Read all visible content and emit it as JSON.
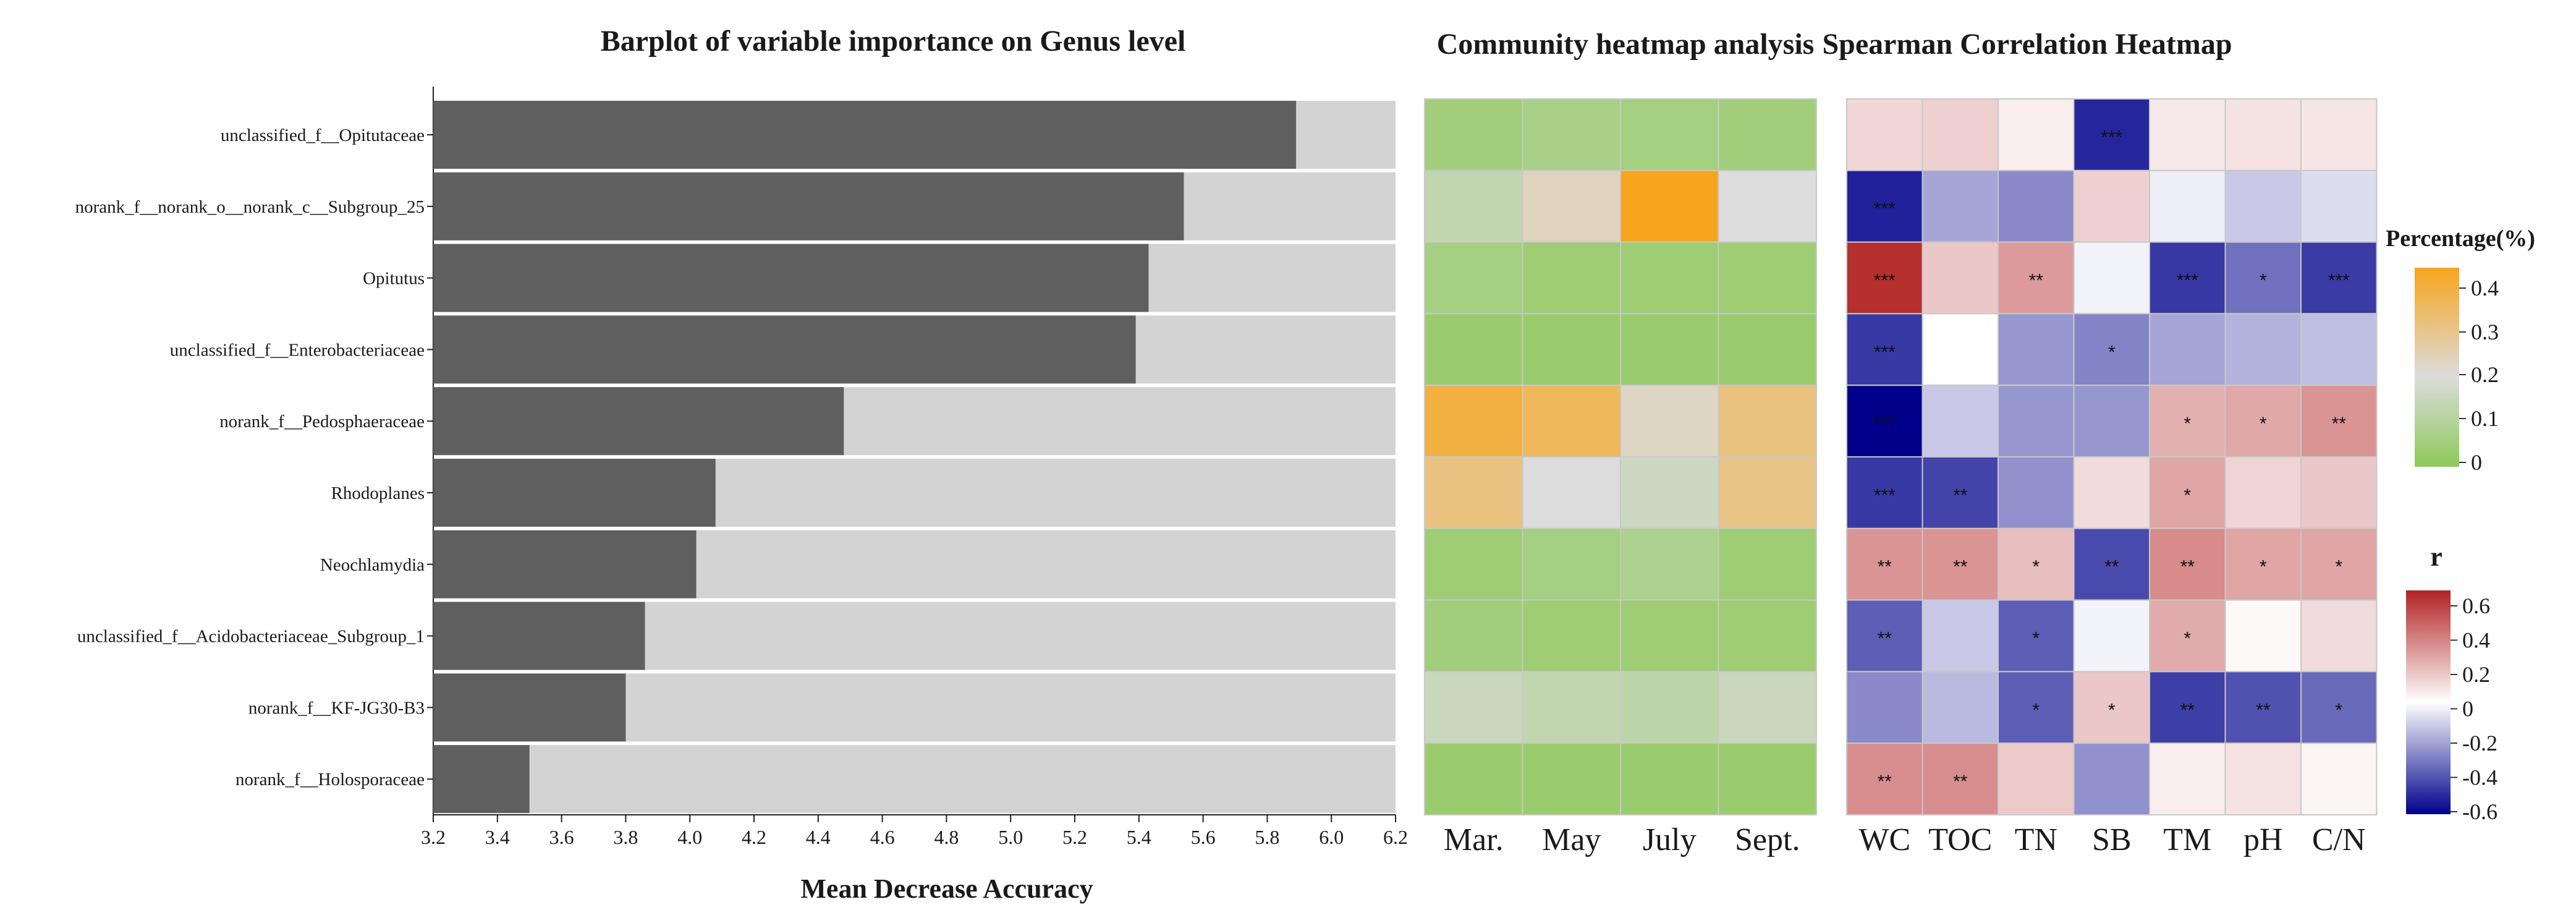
{
  "chart_data": [
    {
      "type": "bar",
      "title": "Barplot of variable importance on Genus level",
      "xlabel": "Mean Decrease Accuracy",
      "xlim": [
        3.2,
        6.2
      ],
      "x_ticks": [
        "3.2",
        "3.4",
        "3.6",
        "3.8",
        "4.0",
        "4.2",
        "4.4",
        "4.6",
        "4.8",
        "5.0",
        "5.2",
        "5.4",
        "5.6",
        "5.8",
        "6.0",
        "6.2"
      ],
      "categories": [
        "unclassified_f__Opitutaceae",
        "norank_f__norank_o__norank_c__Subgroup_25",
        "Opitutus",
        "unclassified_f__Enterobacteriaceae",
        "norank_f__Pedosphaeraceae",
        "Rhodoplanes",
        "Neochlamydia",
        "unclassified_f__Acidobacteriaceae_Subgroup_1",
        "norank_f__KF-JG30-B3",
        "norank_f__Holosporaceae"
      ],
      "values": [
        5.89,
        5.54,
        5.43,
        5.39,
        4.48,
        4.08,
        4.02,
        3.86,
        3.8,
        3.5
      ],
      "bar_color": "#5f5f5f",
      "background_color": "#d3d3d3"
    },
    {
      "type": "heatmap",
      "title": "Community heatmap analysis",
      "columns": [
        "Mar.",
        "May",
        "July",
        "Sept."
      ],
      "rows": [
        "unclassified_f__Opitutaceae",
        "norank_f__norank_o__norank_c__Subgroup_25",
        "Opitutus",
        "unclassified_f__Enterobacteriaceae",
        "norank_f__Pedosphaeraceae",
        "Rhodoplanes",
        "Neochlamydia",
        "unclassified_f__Acidobacteriaceae_Subgroup_1",
        "norank_f__KF-JG30-B3",
        "norank_f__Holosporaceae"
      ],
      "values": [
        [
          0.05,
          0.07,
          0.06,
          0.05
        ],
        [
          0.13,
          0.24,
          0.45,
          0.2
        ],
        [
          0.06,
          0.04,
          0.04,
          0.04
        ],
        [
          0.03,
          0.03,
          0.03,
          0.03
        ],
        [
          0.4,
          0.37,
          0.23,
          0.32
        ],
        [
          0.32,
          0.2,
          0.16,
          0.31
        ],
        [
          0.04,
          0.06,
          0.08,
          0.04
        ],
        [
          0.05,
          0.04,
          0.04,
          0.04
        ],
        [
          0.15,
          0.13,
          0.12,
          0.15
        ],
        [
          0.03,
          0.03,
          0.03,
          0.03
        ]
      ],
      "legend": {
        "title": "Percentage(%)",
        "ticks": [
          "0.4",
          "0.3",
          "0.2",
          "0.1",
          "0"
        ],
        "range": [
          0,
          0.45
        ],
        "colors": [
          "#8ec95a",
          "#dcdcdc",
          "#f7a51c"
        ]
      }
    },
    {
      "type": "heatmap",
      "title": "Spearman Correlation Heatmap",
      "columns": [
        "WC",
        "TOC",
        "TN",
        "SB",
        "TM",
        "pH",
        "C/N"
      ],
      "rows": [
        "unclassified_f__Opitutaceae",
        "norank_f__norank_o__norank_c__Subgroup_25",
        "Opitutus",
        "unclassified_f__Enterobacteriaceae",
        "norank_f__Pedosphaeraceae",
        "Rhodoplanes",
        "Neochlamydia",
        "unclassified_f__Acidobacteriaceae_Subgroup_1",
        "norank_f__KF-JG30-B3",
        "norank_f__Holosporaceae"
      ],
      "values": [
        [
          0.1,
          0.12,
          0.04,
          -0.62,
          0.05,
          0.07,
          0.06
        ],
        [
          -0.64,
          -0.22,
          -0.3,
          0.12,
          -0.03,
          -0.12,
          -0.07
        ],
        [
          0.7,
          0.15,
          0.3,
          -0.02,
          -0.56,
          -0.38,
          -0.55
        ],
        [
          -0.56,
          0.0,
          -0.26,
          -0.32,
          -0.22,
          -0.18,
          -0.15
        ],
        [
          -0.8,
          -0.12,
          -0.26,
          -0.26,
          0.22,
          0.25,
          0.32
        ],
        [
          -0.56,
          -0.52,
          -0.28,
          0.09,
          0.26,
          0.11,
          0.15
        ],
        [
          0.32,
          0.32,
          0.18,
          -0.5,
          0.35,
          0.26,
          0.26
        ],
        [
          -0.44,
          -0.12,
          -0.44,
          -0.02,
          0.24,
          0.01,
          0.09
        ],
        [
          -0.3,
          -0.16,
          -0.44,
          0.15,
          -0.54,
          -0.48,
          -0.4
        ],
        [
          0.34,
          0.34,
          0.14,
          -0.28,
          0.04,
          0.07,
          0.02
        ]
      ],
      "significance": [
        [
          "",
          "",
          "",
          "***",
          "",
          "",
          ""
        ],
        [
          "***",
          "",
          "",
          "",
          "",
          "",
          ""
        ],
        [
          "***",
          "",
          "**",
          "",
          "***",
          "*",
          "***"
        ],
        [
          "***",
          "",
          "",
          "*",
          "",
          "",
          ""
        ],
        [
          "***",
          "",
          "",
          "",
          "*",
          "*",
          "**"
        ],
        [
          "***",
          "**",
          "",
          "",
          "*",
          "",
          ""
        ],
        [
          "**",
          "**",
          "*",
          "**",
          "**",
          "*",
          "*"
        ],
        [
          "**",
          "",
          "*",
          "",
          "*",
          "",
          ""
        ],
        [
          "",
          "",
          "*",
          "*",
          "**",
          "**",
          "*"
        ],
        [
          "**",
          "**",
          "",
          "",
          "",
          "",
          ""
        ]
      ],
      "legend": {
        "title": "r",
        "ticks": [
          "0.6",
          "0.4",
          "0.2",
          "0",
          "-0.2",
          "-0.4",
          "-0.6"
        ],
        "range": [
          -0.7,
          0.7
        ],
        "colors": [
          "#00008b",
          "#ffffff",
          "#b22222"
        ]
      }
    }
  ]
}
